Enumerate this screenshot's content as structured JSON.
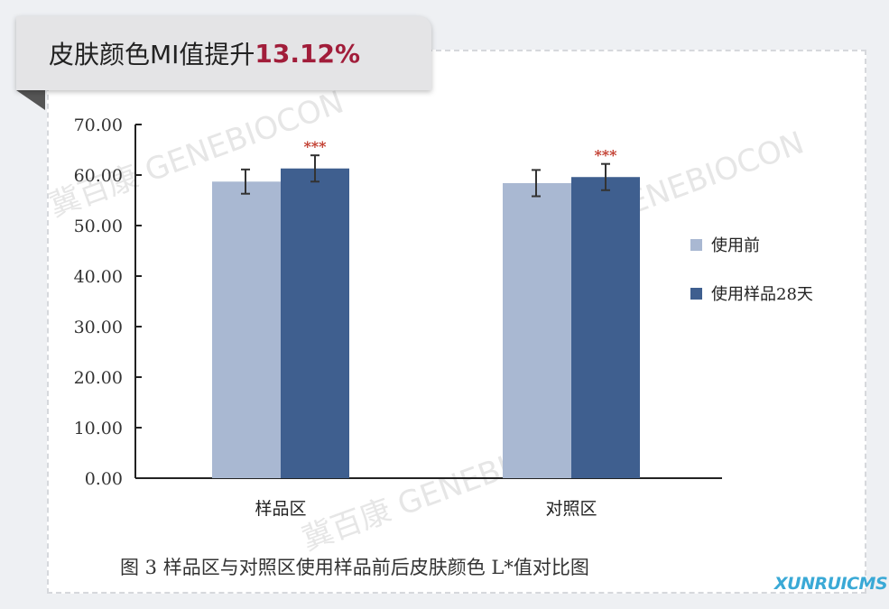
{
  "banner": {
    "text": "皮肤颜色MI值提升",
    "highlight": "13.12%"
  },
  "chart_data": {
    "type": "bar",
    "categories": [
      "样品区",
      "对照区"
    ],
    "series": [
      {
        "name": "使用前",
        "values": [
          58.7,
          58.4
        ],
        "errors": [
          2.4,
          2.6
        ],
        "color": "#a9b8d2"
      },
      {
        "name": "使用样品28天",
        "values": [
          61.3,
          59.6
        ],
        "errors": [
          2.6,
          2.6
        ],
        "color": "#3f5f8f"
      }
    ],
    "annotations": [
      "***",
      "***"
    ],
    "annotation_color": "#c0392b",
    "yticks": [
      "0.00",
      "10.00",
      "20.00",
      "30.00",
      "40.00",
      "50.00",
      "60.00",
      "70.00"
    ],
    "ylim": [
      0,
      70
    ],
    "caption": "图 3  样品区与对照区使用样品前后皮肤颜色 L*值对比图",
    "legend": "right",
    "grid": false
  },
  "watermark": "冀百康 GENEBIOCON",
  "logo": "XUNRUICMS"
}
